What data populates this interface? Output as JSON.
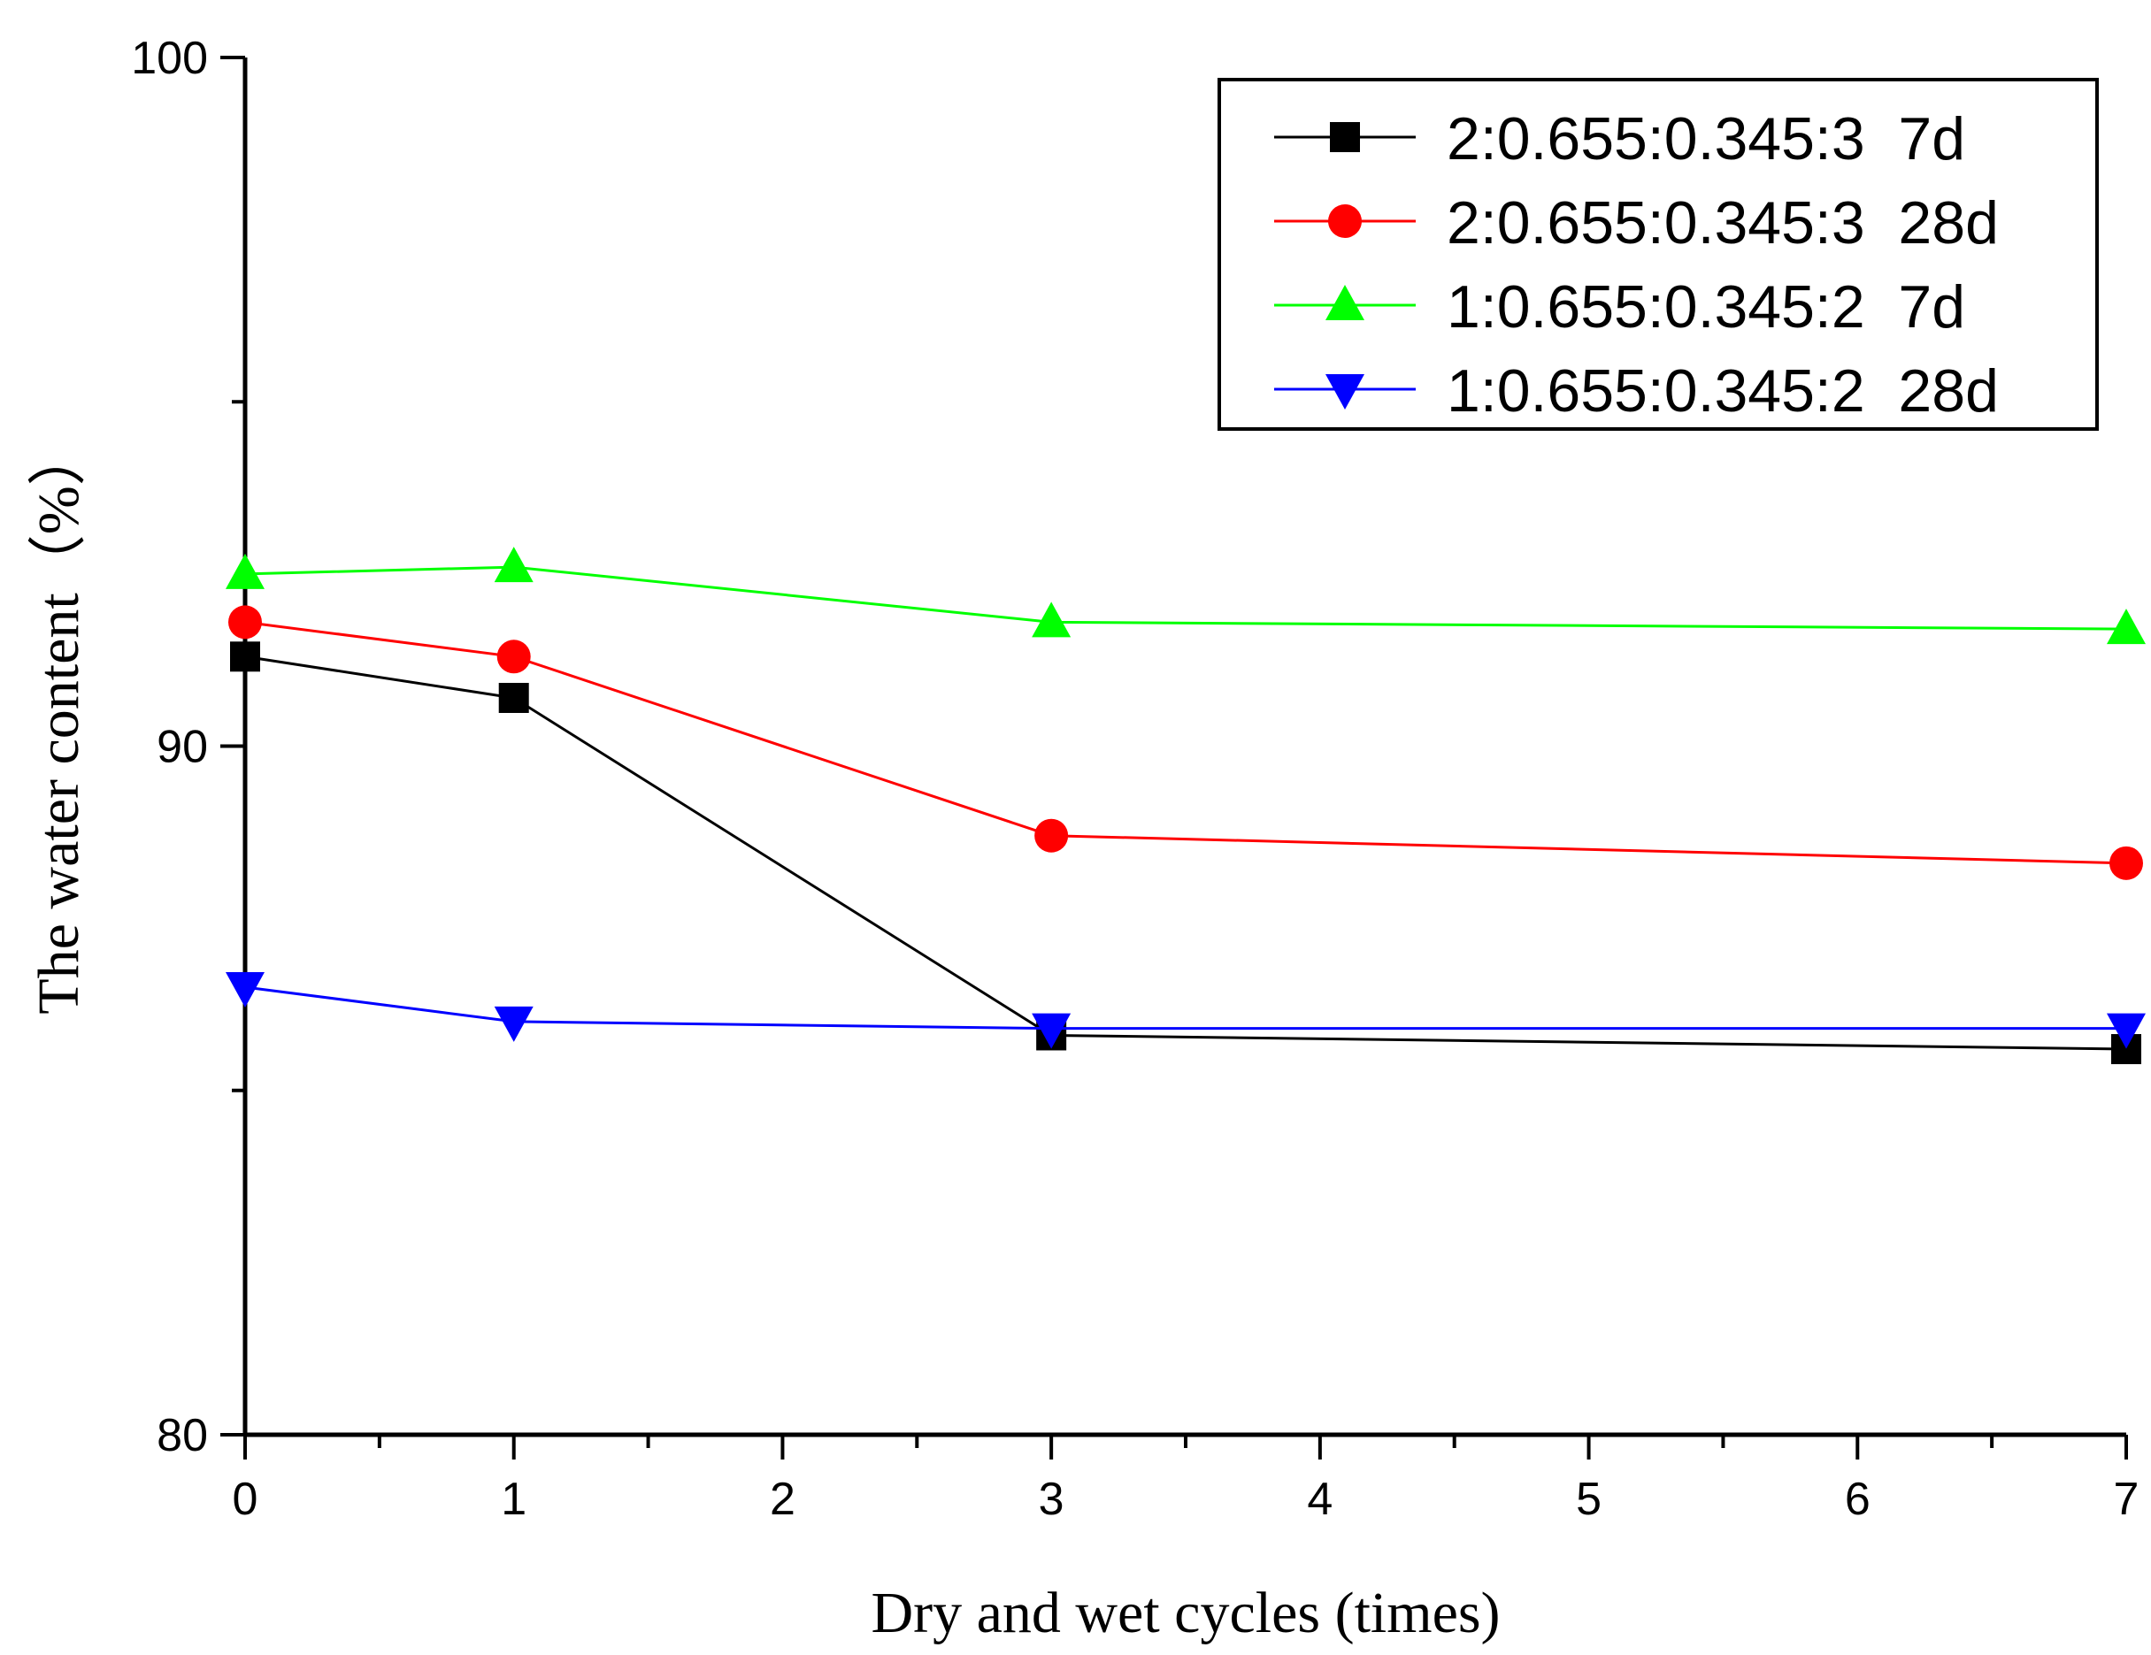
{
  "chart_data": {
    "type": "line",
    "title": "",
    "xlabel": "Dry and wet cycles (times)",
    "ylabel": "The water content（%）",
    "xlim": [
      0,
      7
    ],
    "ylim": [
      80,
      100
    ],
    "x_ticks": [
      0,
      1,
      2,
      3,
      4,
      5,
      6,
      7
    ],
    "x_minor_ticks": [
      0.5,
      1.5,
      2.5,
      3.5,
      4.5,
      5.5,
      6.5
    ],
    "y_ticks": [
      80,
      90,
      100
    ],
    "y_minor_ticks": [
      85,
      95
    ],
    "legend_position": "top-right",
    "series": [
      {
        "name": "2:0.655:0.345:3  7d",
        "color": "#000000",
        "marker": "square",
        "x": [
          0,
          1,
          3,
          7
        ],
        "y": [
          91.3,
          90.7,
          85.8,
          85.6
        ]
      },
      {
        "name": "2:0.655:0.345:3  28d",
        "color": "#ff0000",
        "marker": "circle",
        "x": [
          0,
          1,
          3,
          7
        ],
        "y": [
          91.8,
          91.3,
          88.7,
          88.3
        ]
      },
      {
        "name": "1:0.655:0.345:2  7d",
        "color": "#00ff00",
        "marker": "triangle-up",
        "x": [
          0,
          1,
          3,
          7
        ],
        "y": [
          92.5,
          92.6,
          91.8,
          91.7
        ]
      },
      {
        "name": "1:0.655:0.345:2  28d",
        "color": "#0000ff",
        "marker": "triangle-down",
        "x": [
          0,
          1,
          3,
          7
        ],
        "y": [
          86.5,
          86.0,
          85.9,
          85.9
        ]
      }
    ]
  }
}
